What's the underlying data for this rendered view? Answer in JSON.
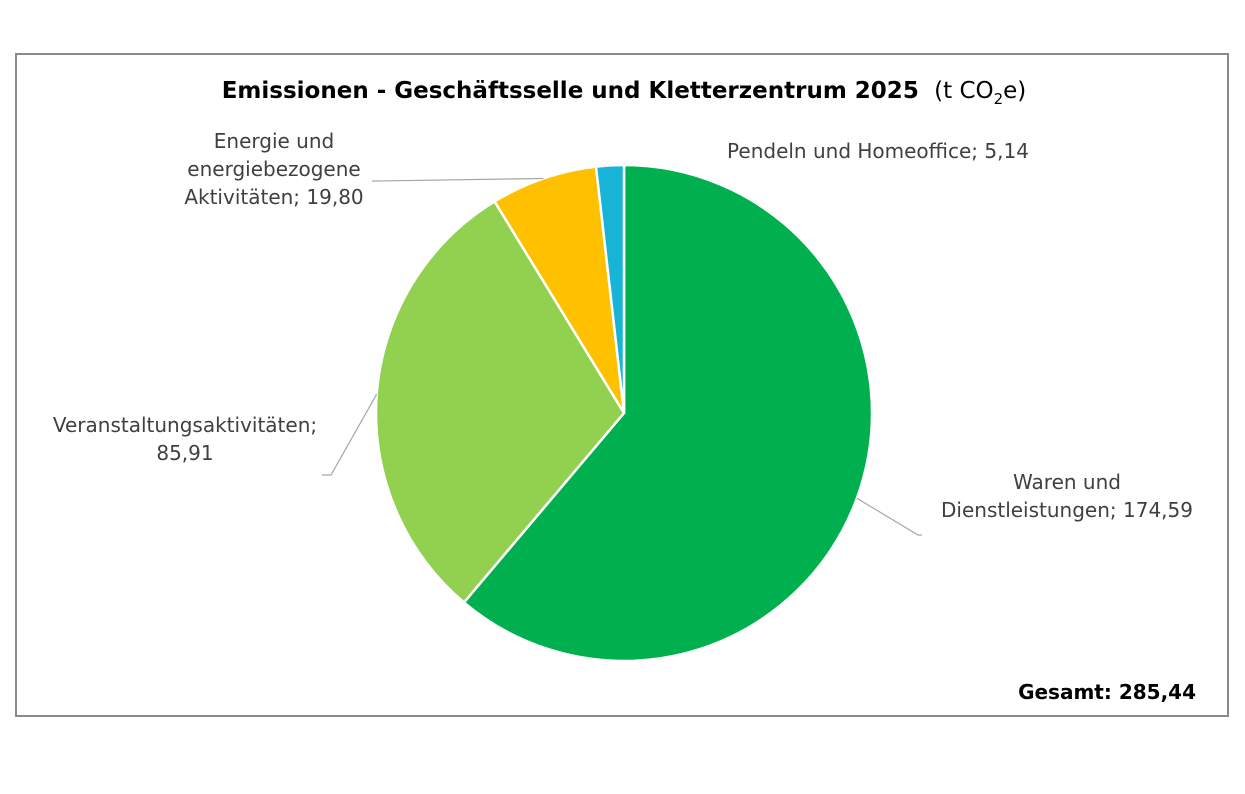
{
  "chart_data": {
    "type": "pie",
    "title": {
      "main": "Emissionen - Geschäftsselle und Kletterzentrum 2025",
      "unit_prefix": "(t CO",
      "unit_sub": "2",
      "unit_suffix": "e)"
    },
    "slices": [
      {
        "label_lines": [
          "Waren und",
          "Dienstleistungen; 174,59"
        ],
        "name": "Waren und Dienstleistungen",
        "value": 174.59,
        "color": "#00b04f"
      },
      {
        "label_lines": [
          "Veranstaltungsaktivitäten;",
          "85,91"
        ],
        "name": "Veranstaltungsaktivitäten",
        "value": 85.91,
        "color": "#92d050"
      },
      {
        "label_lines": [
          "Energie und",
          "energiebezogene",
          "Aktivitäten; 19,80"
        ],
        "name": "Energie und energiebezogene Aktivitäten",
        "value": 19.8,
        "color": "#ffc000"
      },
      {
        "label_lines": [
          "Pendeln und Homeoffice; 5,14"
        ],
        "name": "Pendeln und Homeoffice",
        "value": 5.14,
        "color": "#17b4d8"
      }
    ],
    "total_label": "Gesamt: 285,44",
    "legend": "none",
    "start_angle": "12 o'clock, clockwise"
  }
}
